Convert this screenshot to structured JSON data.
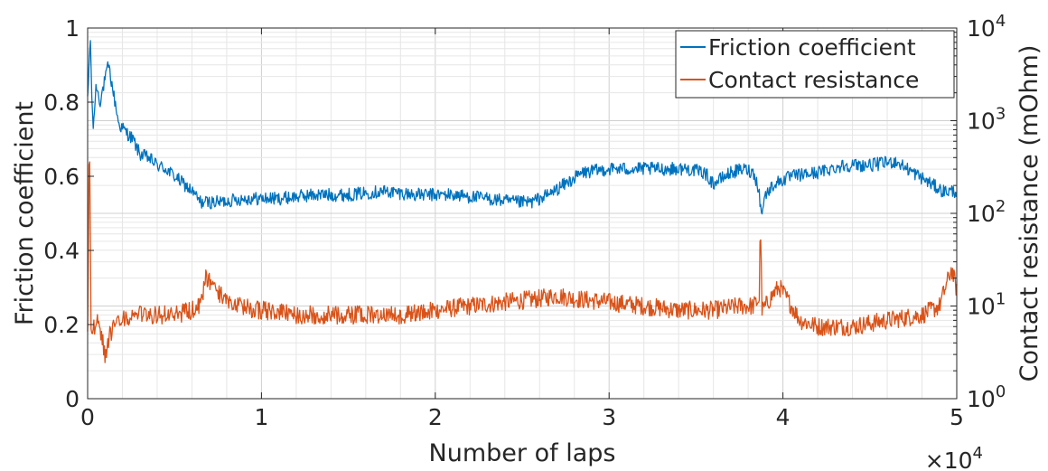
{
  "chart_data": {
    "type": "line",
    "xlabel": "Number of laps",
    "ylabel_left": "Friction coefficient",
    "ylabel_right": "Contact resistance (mOhm)",
    "x_multiplier_label": "×10",
    "x_multiplier_exp": "4",
    "xlim": [
      0,
      50000
    ],
    "ylim_left": [
      0,
      1
    ],
    "ylim_right": [
      1,
      10000
    ],
    "right_axis_scale": "log",
    "grid": true,
    "legend_position": "top-right",
    "x_ticks": [
      {
        "value": 0,
        "label": "0"
      },
      {
        "value": 10000,
        "label": "1"
      },
      {
        "value": 20000,
        "label": "2"
      },
      {
        "value": 30000,
        "label": "3"
      },
      {
        "value": 40000,
        "label": "4"
      },
      {
        "value": 50000,
        "label": "5"
      }
    ],
    "y_ticks_left": [
      {
        "value": 0,
        "label": "0"
      },
      {
        "value": 0.2,
        "label": "0.2"
      },
      {
        "value": 0.4,
        "label": "0.4"
      },
      {
        "value": 0.6,
        "label": "0.6"
      },
      {
        "value": 0.8,
        "label": "0.8"
      },
      {
        "value": 1,
        "label": "1"
      }
    ],
    "y_ticks_right": [
      {
        "value": 1,
        "base": "10",
        "exp": "0"
      },
      {
        "value": 10,
        "base": "10",
        "exp": "1"
      },
      {
        "value": 100,
        "base": "10",
        "exp": "2"
      },
      {
        "value": 1000,
        "base": "10",
        "exp": "3"
      },
      {
        "value": 10000,
        "base": "10",
        "exp": "4"
      }
    ],
    "series": [
      {
        "name": "Friction coefficient",
        "axis": "left",
        "color": "#0072BD",
        "noise": 0.018,
        "x": [
          0,
          150,
          300,
          500,
          700,
          900,
          1200,
          1500,
          1800,
          2200,
          2600,
          3000,
          3500,
          4000,
          4500,
          5000,
          5500,
          6000,
          6500,
          6800,
          7500,
          9000,
          11000,
          13000,
          15000,
          17000,
          19000,
          21000,
          23000,
          24500,
          25500,
          26500,
          27500,
          28500,
          30000,
          31500,
          33000,
          34500,
          35500,
          36000,
          37000,
          37800,
          38300,
          38600,
          38750,
          39000,
          39500,
          40500,
          42000,
          43500,
          45000,
          46500,
          47500,
          48500,
          49200,
          50000
        ],
        "y": [
          0.8,
          0.98,
          0.72,
          0.85,
          0.8,
          0.84,
          0.9,
          0.82,
          0.74,
          0.72,
          0.7,
          0.66,
          0.65,
          0.63,
          0.62,
          0.6,
          0.58,
          0.56,
          0.53,
          0.53,
          0.53,
          0.54,
          0.54,
          0.55,
          0.55,
          0.56,
          0.55,
          0.55,
          0.54,
          0.53,
          0.53,
          0.55,
          0.58,
          0.61,
          0.62,
          0.62,
          0.62,
          0.62,
          0.61,
          0.58,
          0.61,
          0.62,
          0.61,
          0.57,
          0.5,
          0.55,
          0.58,
          0.6,
          0.61,
          0.63,
          0.63,
          0.64,
          0.61,
          0.58,
          0.56,
          0.56
        ]
      },
      {
        "name": "Contact resistance",
        "axis": "right",
        "color": "#D95319",
        "noise": 0.1,
        "x": [
          0,
          100,
          200,
          500,
          800,
          1000,
          1300,
          1600,
          2000,
          3000,
          4000,
          5000,
          6000,
          6500,
          6800,
          7500,
          8500,
          10000,
          12000,
          14000,
          16000,
          18000,
          20000,
          22000,
          24000,
          26000,
          27000,
          28000,
          30000,
          32000,
          34000,
          36000,
          37500,
          38300,
          38650,
          38700,
          38800,
          39000,
          39500,
          39800,
          40500,
          41000,
          42000,
          44000,
          46000,
          48000,
          49000,
          49700,
          50000
        ],
        "y": [
          6,
          1000,
          5,
          7,
          5,
          3,
          5,
          6,
          7,
          8,
          8,
          8,
          9,
          10,
          20,
          14,
          10,
          9,
          8,
          8,
          8,
          8,
          9,
          10,
          11,
          12,
          13,
          12,
          11,
          10,
          9,
          9,
          10,
          10,
          12,
          100,
          9,
          10,
          14,
          16,
          10,
          7,
          6,
          6,
          7,
          8,
          10,
          25,
          15
        ]
      }
    ]
  }
}
